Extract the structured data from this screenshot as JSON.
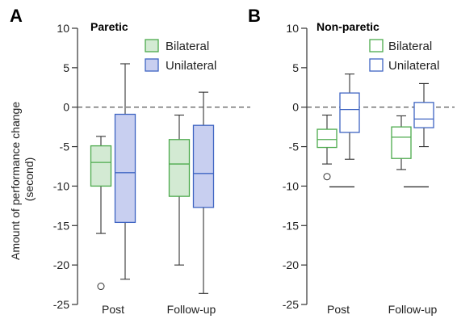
{
  "ylabel_line1": "Amount of performance change",
  "ylabel_line2": "(second)",
  "colors": {
    "bilateral_stroke_A": "#4caa4c",
    "bilateral_fill_A": "#d3ead3",
    "unilateral_stroke_A": "#3e64c2",
    "unilateral_fill_A": "#c8cff0",
    "bilateral_stroke_B": "#4caa4c",
    "unilateral_stroke_B": "#3e64c2",
    "whisker": "#333333",
    "zero_line": "#444444"
  },
  "chart_data": [
    {
      "type": "box",
      "panel_letter": "A",
      "title": "Paretic",
      "ylim": [
        -25,
        10
      ],
      "yticks": [
        10,
        5,
        0,
        -5,
        -10,
        -15,
        -20,
        -25
      ],
      "reference_line": 0,
      "reference_line_style": "dashed",
      "categories": [
        "Post",
        "Follow-up"
      ],
      "legend": {
        "placement": "top-right",
        "entries": [
          "Bilateral",
          "Unilateral"
        ]
      },
      "series": [
        {
          "name": "Bilateral",
          "filled": true,
          "boxes": [
            {
              "q1": -10,
              "median": -7,
              "q3": -4.9,
              "whisker_low": -16,
              "whisker_high": -3.7,
              "outliers": [
                -22.7
              ]
            },
            {
              "q1": -11.3,
              "median": -7.2,
              "q3": -4.1,
              "whisker_low": -20,
              "whisker_high": -1,
              "outliers": []
            }
          ]
        },
        {
          "name": "Unilateral",
          "filled": true,
          "boxes": [
            {
              "q1": -14.6,
              "median": -8.3,
              "q3": -0.9,
              "whisker_low": -21.8,
              "whisker_high": 5.5,
              "outliers": []
            },
            {
              "q1": -12.7,
              "median": -8.4,
              "q3": -2.3,
              "whisker_low": -23.6,
              "whisker_high": 1.9,
              "outliers": []
            }
          ]
        }
      ]
    },
    {
      "type": "box",
      "panel_letter": "B",
      "title": "Non-paretic",
      "ylim": [
        -25,
        10
      ],
      "yticks": [
        10,
        5,
        0,
        -5,
        -10,
        -15,
        -20,
        -25
      ],
      "reference_line": 0,
      "reference_line_style": "dashed",
      "categories": [
        "Post",
        "Follow-up"
      ],
      "legend": {
        "placement": "top-right",
        "entries": [
          "Bilateral",
          "Unilateral"
        ]
      },
      "series": [
        {
          "name": "Bilateral",
          "filled": false,
          "boxes": [
            {
              "q1": -5.1,
              "median": -4.1,
              "q3": -2.8,
              "whisker_low": -7.2,
              "whisker_high": -1,
              "outliers": [
                -8.8,
                -10.1
              ]
            },
            {
              "q1": -6.5,
              "median": -3.8,
              "q3": -2.5,
              "whisker_low": -7.9,
              "whisker_high": -1.1,
              "outliers": [
                -10.1
              ]
            }
          ]
        },
        {
          "name": "Unilateral",
          "filled": false,
          "boxes": [
            {
              "q1": -3.2,
              "median": -0.3,
              "q3": 1.8,
              "whisker_low": -6.6,
              "whisker_high": 4.2,
              "outliers": []
            },
            {
              "q1": -2.6,
              "median": -1.5,
              "q3": 0.6,
              "whisker_low": -5,
              "whisker_high": 3,
              "outliers": []
            }
          ]
        }
      ]
    }
  ]
}
